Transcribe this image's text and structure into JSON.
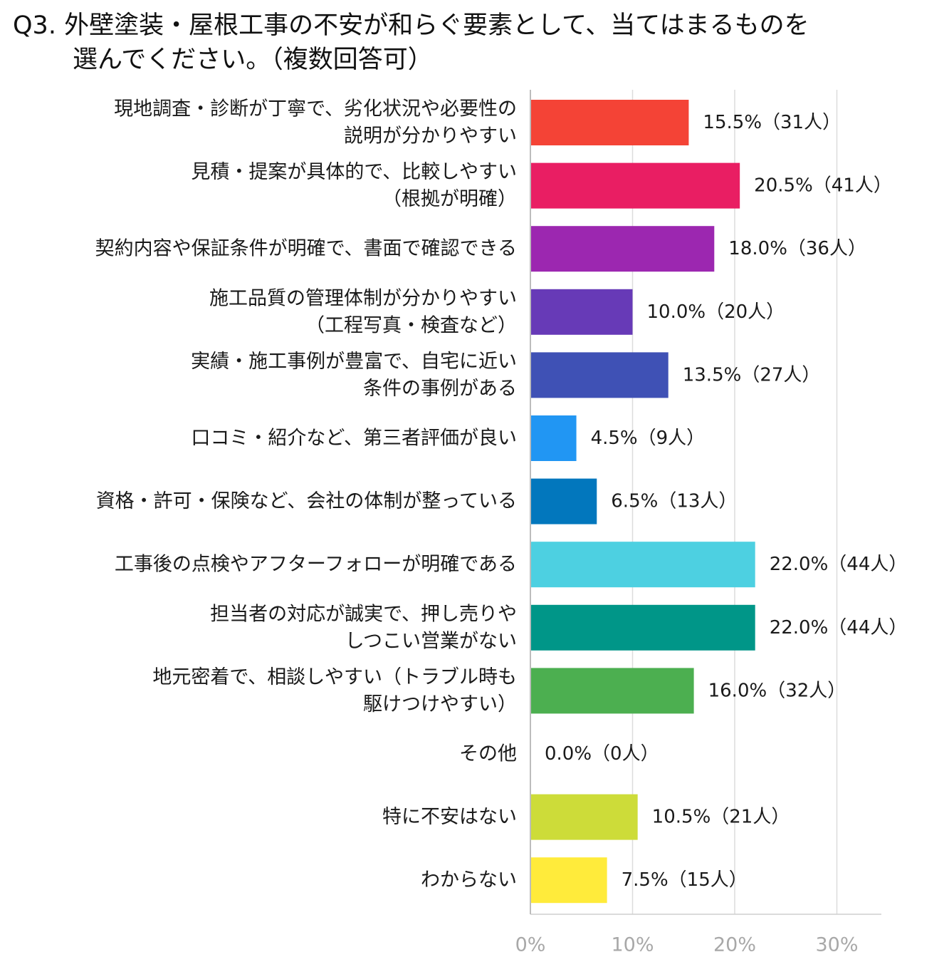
{
  "title": {
    "line1": "Q3. 外壁塗装・屋根工事の不安が和らぐ要素として、当てはまるものを",
    "line2": "選んでください。（複数回答可）"
  },
  "chart_data": {
    "type": "bar",
    "orientation": "horizontal",
    "title": "Q3. 外壁塗装・屋根工事の不安が和らぐ要素として、当てはまるものを選んでください。（複数回答可）",
    "categories": [
      [
        "現地調査・診断が丁寧で、劣化状況や必要性の",
        "説明が分かりやすい"
      ],
      [
        "見積・提案が具体的で、比較しやすい",
        "（根拠が明確）"
      ],
      [
        "契約内容や保証条件が明確で、書面で確認できる"
      ],
      [
        "施工品質の管理体制が分かりやすい",
        "（工程写真・検査など）"
      ],
      [
        "実績・施工事例が豊富で、自宅に近い",
        "条件の事例がある"
      ],
      [
        "口コミ・紹介など、第三者評価が良い"
      ],
      [
        "資格・許可・保険など、会社の体制が整っている"
      ],
      [
        "工事後の点検やアフターフォローが明確である"
      ],
      [
        "担当者の対応が誠実で、押し売りや",
        "しつこい営業がない"
      ],
      [
        "地元密着で、相談しやすい（トラブル時も",
        "駆けつけやすい）"
      ],
      [
        "その他"
      ],
      [
        "特に不安はない"
      ],
      [
        "わからない"
      ]
    ],
    "values": [
      15.5,
      20.5,
      18.0,
      10.0,
      13.5,
      4.5,
      6.5,
      22.0,
      22.0,
      16.0,
      0.0,
      10.5,
      7.5
    ],
    "value_labels": [
      "15.5%（31人）",
      "20.5%（41人）",
      "18.0%（36人）",
      "10.0%（20人）",
      "13.5%（27人）",
      "4.5%（9人）",
      "6.5%（13人）",
      "22.0%（44人）",
      "22.0%（44人）",
      "16.0%（32人）",
      "0.0%（0人）",
      "10.5%（21人）",
      "7.5%（15人）"
    ],
    "colors": [
      "#f44336",
      "#e91e63",
      "#9c27b0",
      "#673ab7",
      "#3f51b5",
      "#2196f3",
      "#0277bd",
      "#4dd0e1",
      "#009688",
      "#4caf50",
      "#9e9e9e",
      "#cddc39",
      "#ffeb3b"
    ],
    "xlim": [
      0,
      34
    ],
    "xticks": [
      0,
      10,
      20,
      30
    ],
    "xtick_labels": [
      "0%",
      "10%",
      "20%",
      "30%"
    ],
    "grid": true,
    "legend": "none"
  }
}
